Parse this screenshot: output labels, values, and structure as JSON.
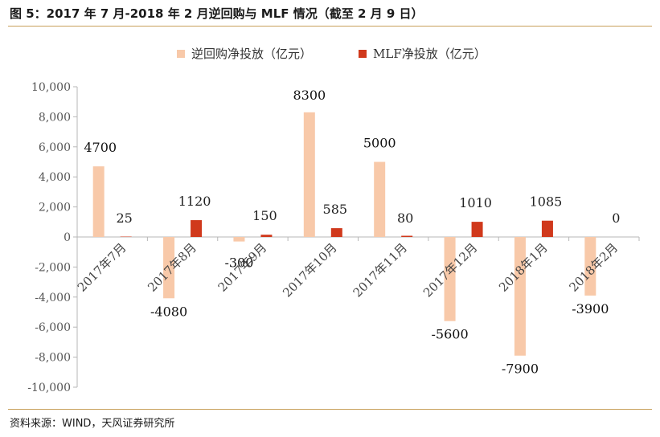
{
  "figure": {
    "title": "图 5：2017 年 7 月-2018 年 2 月逆回购与 MLF 情况（截至 2 月 9 日）",
    "source": "资料来源：WIND，天风证券研究所"
  },
  "colors": {
    "series1": "#f8c9a9",
    "series2": "#d0391c",
    "axis": "#b7b7b7",
    "rule": "#c8a05a",
    "text": "#333333"
  },
  "chart_data": {
    "type": "bar",
    "categories": [
      "2017年7月",
      "2017年8月",
      "2017年9月",
      "2017年10月",
      "2017年11月",
      "2017年12月",
      "2018年1月",
      "2018年2月"
    ],
    "series": [
      {
        "name": "逆回购净投放（亿元）",
        "values": [
          4700,
          -4080,
          -300,
          8300,
          5000,
          -5600,
          -7900,
          -3900
        ]
      },
      {
        "name": "MLF净投放（亿元）",
        "values": [
          25,
          1120,
          150,
          585,
          80,
          1010,
          1085,
          0
        ]
      }
    ],
    "yticks": [
      "10,000",
      "8,000",
      "6,000",
      "4,000",
      "2,000",
      "0",
      "-2,000",
      "-4,000",
      "-6,000",
      "-8,000",
      "-10,000"
    ],
    "ylim": [
      -10000,
      10000
    ],
    "legend_position": "top-center",
    "grid": false
  }
}
